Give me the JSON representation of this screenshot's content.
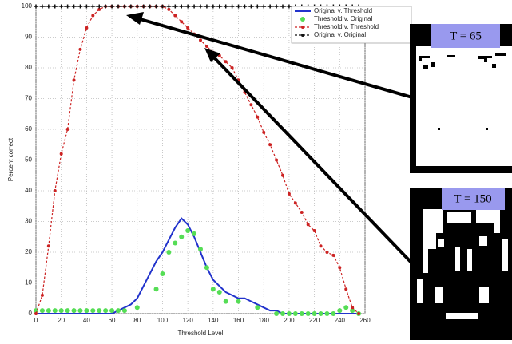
{
  "chart_data": {
    "type": "line",
    "x_label": "Threshold Level",
    "y_label": "Percent correct",
    "x": [
      0,
      5,
      10,
      15,
      20,
      25,
      30,
      35,
      40,
      45,
      50,
      55,
      60,
      65,
      70,
      75,
      80,
      85,
      90,
      95,
      100,
      105,
      110,
      115,
      120,
      125,
      130,
      135,
      140,
      145,
      150,
      155,
      160,
      165,
      170,
      175,
      180,
      185,
      190,
      195,
      200,
      205,
      210,
      215,
      220,
      225,
      230,
      235,
      240,
      245,
      250,
      255
    ],
    "xlim": [
      0,
      260
    ],
    "xticks": [
      0,
      20,
      40,
      60,
      80,
      100,
      120,
      140,
      160,
      180,
      200,
      220,
      240,
      260
    ],
    "ylim": [
      0,
      100
    ],
    "yticks": [
      0,
      10,
      20,
      30,
      40,
      50,
      60,
      70,
      80,
      90,
      100
    ],
    "grid": true,
    "series": [
      {
        "name": "Original v. Threshold",
        "color": "#2233cc",
        "line_style": "solid",
        "marker": "none",
        "values": [
          0,
          0,
          0,
          0,
          0,
          0,
          0,
          0,
          0,
          0,
          0,
          0,
          0,
          1,
          2,
          3,
          5,
          9,
          13,
          17,
          20,
          24,
          28,
          31,
          29,
          25,
          20,
          15,
          11,
          9,
          7,
          6,
          5,
          5,
          4,
          3,
          2,
          1,
          1,
          0,
          0,
          0,
          0,
          0,
          0,
          0,
          0,
          0,
          0,
          0,
          0,
          0
        ]
      },
      {
        "name": "Threshold v. Original",
        "color": "#55dd55",
        "line_style": "none",
        "marker": "circle",
        "values": [
          1,
          1,
          1,
          1,
          1,
          1,
          1,
          1,
          1,
          1,
          1,
          1,
          1,
          1,
          1,
          null,
          2,
          null,
          null,
          8,
          13,
          20,
          23,
          25,
          27,
          26,
          21,
          15,
          8,
          7,
          4,
          null,
          4,
          null,
          null,
          2,
          null,
          null,
          0,
          0,
          0,
          0,
          0,
          0,
          0,
          0,
          0,
          0,
          1,
          2,
          1,
          0
        ]
      },
      {
        "name": "Threshold v. Threshold",
        "color": "#cc2222",
        "line_style": "dashed",
        "marker": "dot",
        "values": [
          0,
          6,
          22,
          40,
          52,
          60,
          76,
          86,
          93,
          97,
          99,
          100,
          100,
          100,
          100,
          100,
          100,
          100,
          100,
          100,
          100,
          99,
          97,
          95,
          93,
          91,
          89,
          87,
          85,
          84,
          82,
          80,
          76,
          72,
          68,
          64,
          59,
          55,
          50,
          45,
          39,
          36,
          33,
          29,
          27,
          22,
          20,
          19,
          15,
          8,
          2,
          0
        ]
      },
      {
        "name": "Original v. Original",
        "color": "#111111",
        "line_style": "dashed",
        "marker": "plus",
        "values": [
          100,
          100,
          100,
          100,
          100,
          100,
          100,
          100,
          100,
          100,
          100,
          100,
          100,
          100,
          100,
          100,
          100,
          100,
          100,
          100,
          100,
          100,
          100,
          100,
          100,
          100,
          100,
          100,
          100,
          100,
          100,
          100,
          100,
          100,
          100,
          100,
          100,
          100,
          100,
          100,
          100,
          100,
          100,
          100,
          100,
          100,
          100,
          100,
          100,
          100,
          100,
          100
        ]
      }
    ]
  },
  "insets": [
    {
      "label": "T = 65"
    },
    {
      "label": "T = 150"
    }
  ]
}
